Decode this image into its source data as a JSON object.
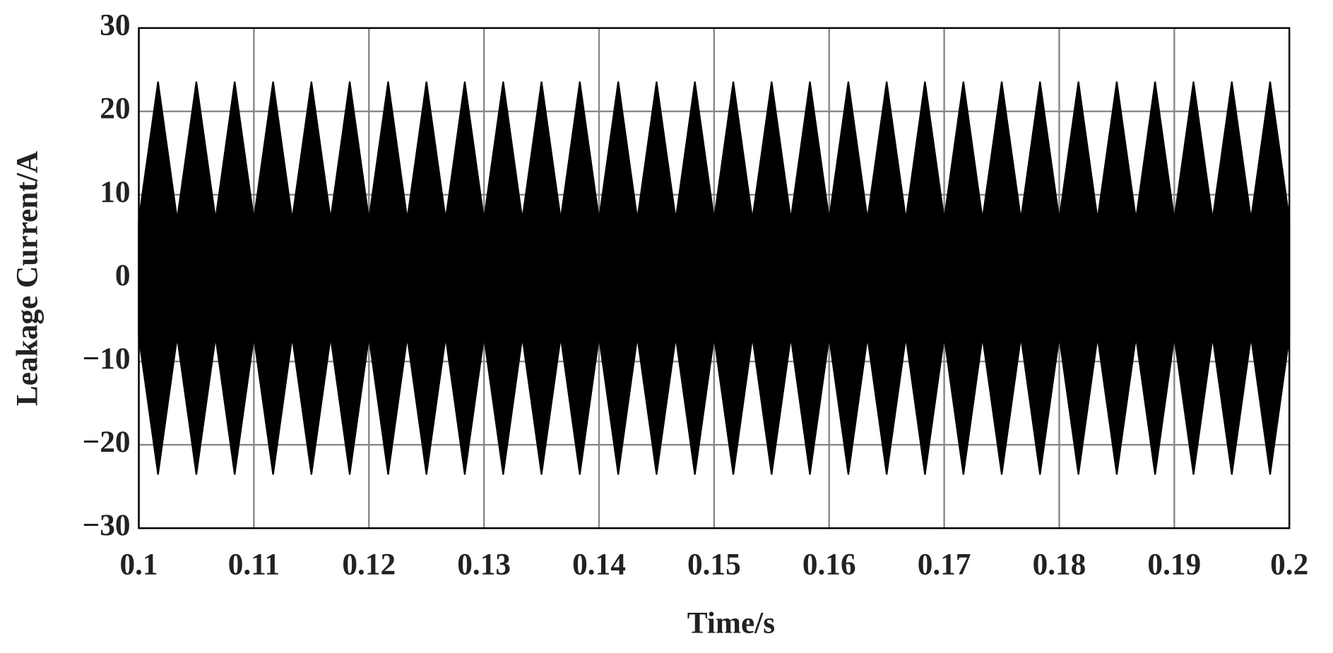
{
  "chart_data": {
    "type": "area",
    "color": "#000000",
    "x_label": "Time/s",
    "y_label": "Leakage Current/A",
    "x": [
      0.1,
      0.10167,
      0.10333,
      0.105,
      0.10667,
      0.10833,
      0.11,
      0.11167,
      0.11333,
      0.115,
      0.11667,
      0.11833,
      0.12,
      0.12167,
      0.12333,
      0.125,
      0.12667,
      0.12833,
      0.13,
      0.13167,
      0.13333,
      0.135,
      0.13667,
      0.13833,
      0.14,
      0.14167,
      0.14333,
      0.145,
      0.14667,
      0.14833,
      0.15,
      0.15167,
      0.15333,
      0.155,
      0.15667,
      0.15833,
      0.16,
      0.16167,
      0.16333,
      0.165,
      0.16667,
      0.16833,
      0.17,
      0.17167,
      0.17333,
      0.175,
      0.17667,
      0.17833,
      0.18,
      0.18167,
      0.18333,
      0.185,
      0.18667,
      0.18833,
      0.19,
      0.19167,
      0.19333,
      0.195,
      0.19667,
      0.19833,
      0.2
    ],
    "upper": [
      7,
      23.5,
      7,
      23.5,
      7,
      23.5,
      7,
      23.5,
      7,
      23.5,
      7,
      23.5,
      7,
      23.5,
      7,
      23.5,
      7,
      23.5,
      7,
      23.5,
      7,
      23.5,
      7,
      23.5,
      7,
      23.5,
      7,
      23.5,
      7,
      23.5,
      7,
      23.5,
      7,
      23.5,
      7,
      23.5,
      7,
      23.5,
      7,
      23.5,
      7,
      23.5,
      7,
      23.5,
      7,
      23.5,
      7,
      23.5,
      7,
      23.5,
      7,
      23.5,
      7,
      23.5,
      7,
      23.5,
      7,
      23.5,
      7,
      23.5,
      7
    ],
    "lower": [
      -7,
      -23.5,
      -7,
      -23.5,
      -7,
      -23.5,
      -7,
      -23.5,
      -7,
      -23.5,
      -7,
      -23.5,
      -7,
      -23.5,
      -7,
      -23.5,
      -7,
      -23.5,
      -7,
      -23.5,
      -7,
      -23.5,
      -7,
      -23.5,
      -7,
      -23.5,
      -7,
      -23.5,
      -7,
      -23.5,
      -7,
      -23.5,
      -7,
      -23.5,
      -7,
      -23.5,
      -7,
      -23.5,
      -7,
      -23.5,
      -7,
      -23.5,
      -7,
      -23.5,
      -7,
      -23.5,
      -7,
      -23.5,
      -7,
      -23.5,
      -7,
      -23.5,
      -7,
      -23.5,
      -7,
      -23.5,
      -7,
      -23.5,
      -7,
      -23.5,
      -7
    ],
    "xlim": [
      0.1,
      0.2
    ],
    "xticks": [
      0.1,
      0.11,
      0.12,
      0.13,
      0.14,
      0.15,
      0.16,
      0.17,
      0.18,
      0.19,
      0.2
    ],
    "ylim": [
      -30,
      30
    ],
    "yticks": [
      {
        "value": -30,
        "label": "−30"
      },
      {
        "value": -20,
        "label": "−20"
      },
      {
        "value": -10,
        "label": "−10"
      },
      0,
      10,
      20,
      30
    ],
    "grid": true
  }
}
